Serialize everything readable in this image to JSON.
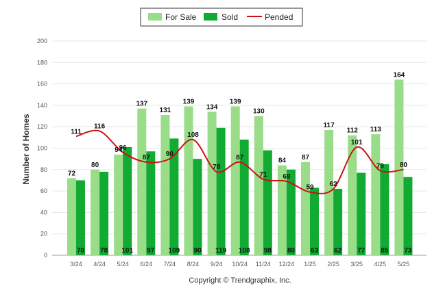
{
  "chart_data": {
    "type": "bar",
    "ylabel": "Number of Homes",
    "ylim": [
      0,
      200
    ],
    "yticks": [
      0,
      20,
      40,
      60,
      80,
      100,
      120,
      140,
      160,
      180,
      200
    ],
    "categories": [
      "3/24",
      "4/24",
      "5/24",
      "6/24",
      "7/24",
      "8/24",
      "9/24",
      "10/24",
      "11/24",
      "12/24",
      "1/25",
      "2/25",
      "3/25",
      "4/25",
      "5/25"
    ],
    "series": [
      {
        "name": "For Sale",
        "kind": "bar",
        "color": "#99dd88",
        "values": [
          72,
          80,
          94,
          137,
          131,
          139,
          134,
          139,
          130,
          84,
          87,
          117,
          112,
          113,
          164
        ]
      },
      {
        "name": "Sold",
        "kind": "bar",
        "color": "#11aa33",
        "values": [
          70,
          78,
          101,
          97,
          109,
          90,
          119,
          108,
          98,
          80,
          63,
          62,
          77,
          85,
          73
        ]
      },
      {
        "name": "Pended",
        "kind": "line",
        "color": "#cc1111",
        "values": [
          111,
          116,
          96,
          87,
          90,
          108,
          78,
          87,
          71,
          69,
          59,
          62,
          101,
          79,
          80
        ]
      }
    ],
    "data_labels": {
      "For Sale": [
        "72",
        "80",
        "94",
        "137",
        "131",
        "139",
        "134",
        "139",
        "130",
        "84",
        "87",
        "117",
        "112",
        "113",
        "164"
      ],
      "Pended": [
        "111",
        "116",
        "96",
        "87",
        "90",
        "108",
        "78",
        "87",
        "71",
        "69",
        "59",
        "62",
        "101",
        "79",
        "80"
      ],
      "Sold": [
        "70",
        "78",
        "101",
        "97",
        "109",
        "90",
        "119",
        "108",
        "98",
        "80",
        "63",
        "62",
        "77",
        "85",
        "73"
      ]
    },
    "legend_position": "top-center",
    "grid": true
  },
  "footer": {
    "copyright": "Copyright © Trendgraphix, Inc."
  }
}
